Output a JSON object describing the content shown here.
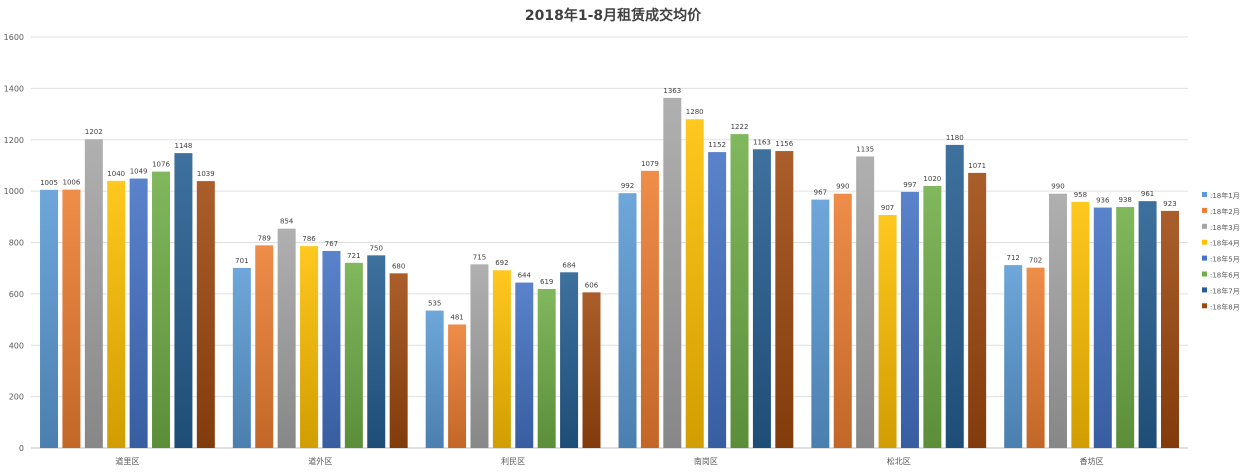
{
  "chart_data": {
    "type": "bar",
    "title": "2018年1-8月租赁成交均价",
    "xlabel": "",
    "ylabel": "",
    "ylim": [
      0,
      1600
    ],
    "yticks": [
      "0",
      "200",
      "400",
      "600",
      "800",
      "1000",
      "1200",
      "1400",
      "1600"
    ],
    "grid": true,
    "legend_position": "right",
    "categories": [
      "道里区",
      "道外区",
      "利民区",
      "南岗区",
      "松北区",
      "香坊区"
    ],
    "series": [
      {
        "name": ":18年1月",
        "color": "#5B9BD5",
        "values": [
          1005,
          701,
          535,
          992,
          967,
          712
        ]
      },
      {
        "name": ":18年2月",
        "color": "#ED7D31",
        "values": [
          1006,
          789,
          481,
          1079,
          990,
          702
        ]
      },
      {
        "name": ":18年3月",
        "color": "#A5A5A5",
        "values": [
          1202,
          854,
          715,
          1363,
          1135,
          990
        ]
      },
      {
        "name": ":18年4月",
        "color": "#FFC000",
        "values": [
          1040,
          786,
          692,
          1280,
          907,
          958
        ]
      },
      {
        "name": ":18年5月",
        "color": "#4472C4",
        "values": [
          1049,
          767,
          644,
          1152,
          997,
          936
        ]
      },
      {
        "name": ":18年6月",
        "color": "#70AD47",
        "values": [
          1076,
          721,
          619,
          1222,
          1020,
          938
        ]
      },
      {
        "name": ":18年7月",
        "color": "#255E91",
        "values": [
          1148,
          750,
          684,
          1163,
          1180,
          961
        ]
      },
      {
        "name": ":18年8月",
        "color": "#9E480E",
        "values": [
          1039,
          680,
          606,
          1156,
          1071,
          923
        ]
      }
    ]
  }
}
